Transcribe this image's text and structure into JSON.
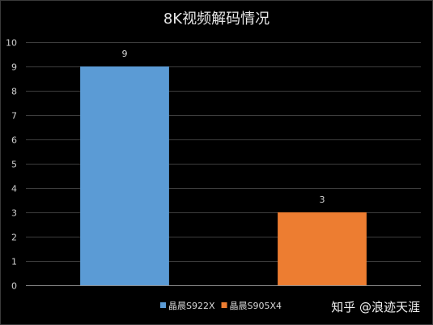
{
  "chart_data": {
    "type": "bar",
    "title": "8K视频解码情况",
    "categories": [
      "晶晨S922X",
      "晶晨S905X4"
    ],
    "values": [
      9,
      3
    ],
    "colors": [
      "#5b9bd5",
      "#ed7d31"
    ],
    "ylim": [
      0,
      10
    ],
    "yticks": [
      0,
      1,
      2,
      3,
      4,
      5,
      6,
      7,
      8,
      9,
      10
    ],
    "grid": true,
    "legend": "bottom",
    "xlabel": "",
    "ylabel": ""
  },
  "watermark": "知乎 @浪迹天涯"
}
